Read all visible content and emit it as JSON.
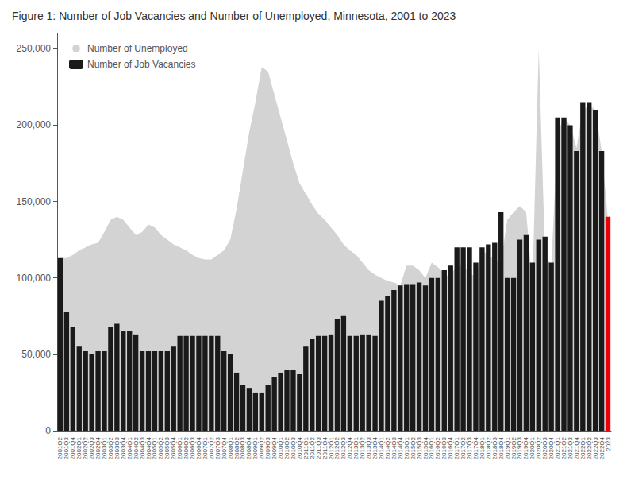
{
  "chart_data": {
    "type": "bar",
    "title": "Figure 1: Number of Job Vacancies and Number of Unemployed, Minnesota, 2001 to 2023",
    "categories": [
      "2001Q2",
      "2001Q3",
      "2001Q4",
      "2002Q1",
      "2002Q2",
      "2002Q3",
      "2002Q4",
      "2003Q1",
      "2003Q2",
      "2003Q3",
      "2003Q4",
      "2004Q1",
      "2004Q2",
      "2004Q3",
      "2004Q4",
      "2005Q1",
      "2005Q2",
      "2005Q3",
      "2005Q4",
      "2006Q1",
      "2006Q2",
      "2006Q3",
      "2006Q4",
      "2007Q1",
      "2007Q2",
      "2007Q3",
      "2007Q4",
      "2008Q1",
      "2008Q2",
      "2008Q3",
      "2008Q4",
      "2009Q1",
      "2009Q2",
      "2009Q3",
      "2009Q4",
      "2010Q1",
      "2010Q2",
      "2010Q3",
      "2010Q4",
      "2011Q1",
      "2011Q2",
      "2011Q3",
      "2011Q4",
      "2012Q1",
      "2012Q2",
      "2012Q3",
      "2012Q4",
      "2013Q1",
      "2013Q2",
      "2013Q3",
      "2013Q4",
      "2014Q1",
      "2014Q2",
      "2014Q3",
      "2014Q4",
      "2015Q1",
      "2015Q2",
      "2015Q3",
      "2015Q4",
      "2016Q1",
      "2016Q2",
      "2016Q3",
      "2016Q4",
      "2017Q1",
      "2017Q2",
      "2017Q3",
      "2017Q4",
      "2018Q1",
      "2018Q2",
      "2018Q3",
      "2018Q4",
      "2019Q1",
      "2019Q2",
      "2019Q3",
      "2019Q4",
      "2020Q1",
      "2020Q2",
      "2020Q3",
      "2020Q4",
      "2021Q1",
      "2021Q2",
      "2021Q3",
      "2021Q4",
      "2022Q1",
      "2022Q2",
      "2022Q3",
      "2022Q4",
      "2023"
    ],
    "series": [
      {
        "name": "Number of Unemployed",
        "type": "area",
        "color": "#d3d3d3",
        "values": [
          113000,
          113000,
          115000,
          118000,
          120000,
          122000,
          123000,
          130000,
          138000,
          140000,
          138000,
          133000,
          128000,
          130000,
          135000,
          133000,
          128000,
          125000,
          122000,
          120000,
          118000,
          115000,
          113000,
          112000,
          112000,
          115000,
          118000,
          125000,
          145000,
          170000,
          195000,
          215000,
          238000,
          235000,
          220000,
          205000,
          190000,
          175000,
          162000,
          155000,
          148000,
          142000,
          138000,
          133000,
          128000,
          122000,
          118000,
          115000,
          110000,
          105000,
          102000,
          100000,
          98000,
          97000,
          95000,
          108000,
          108000,
          105000,
          100000,
          110000,
          107000,
          103000,
          100000,
          110000,
          107000,
          104000,
          100000,
          118000,
          115000,
          112000,
          110000,
          138000,
          143000,
          147000,
          143000,
          95000,
          250000,
          115000,
          108000,
          195000,
          205000,
          200000,
          185000,
          210000,
          213000,
          210000,
          183000,
          138000
        ]
      },
      {
        "name": "Number of Job Vacancies",
        "type": "bar",
        "color": "#1a1a1a",
        "colors": [
          "#1a1a1a",
          "#1a1a1a",
          "#1a1a1a",
          "#1a1a1a",
          "#1a1a1a",
          "#1a1a1a",
          "#1a1a1a",
          "#1a1a1a",
          "#1a1a1a",
          "#1a1a1a",
          "#1a1a1a",
          "#1a1a1a",
          "#1a1a1a",
          "#1a1a1a",
          "#1a1a1a",
          "#1a1a1a",
          "#1a1a1a",
          "#1a1a1a",
          "#1a1a1a",
          "#1a1a1a",
          "#1a1a1a",
          "#1a1a1a",
          "#1a1a1a",
          "#1a1a1a",
          "#1a1a1a",
          "#1a1a1a",
          "#1a1a1a",
          "#1a1a1a",
          "#1a1a1a",
          "#1a1a1a",
          "#1a1a1a",
          "#1a1a1a",
          "#1a1a1a",
          "#1a1a1a",
          "#1a1a1a",
          "#1a1a1a",
          "#1a1a1a",
          "#1a1a1a",
          "#1a1a1a",
          "#1a1a1a",
          "#1a1a1a",
          "#1a1a1a",
          "#1a1a1a",
          "#1a1a1a",
          "#1a1a1a",
          "#1a1a1a",
          "#1a1a1a",
          "#1a1a1a",
          "#1a1a1a",
          "#1a1a1a",
          "#1a1a1a",
          "#1a1a1a",
          "#1a1a1a",
          "#1a1a1a",
          "#1a1a1a",
          "#1a1a1a",
          "#1a1a1a",
          "#1a1a1a",
          "#1a1a1a",
          "#1a1a1a",
          "#1a1a1a",
          "#1a1a1a",
          "#1a1a1a",
          "#1a1a1a",
          "#1a1a1a",
          "#1a1a1a",
          "#1a1a1a",
          "#1a1a1a",
          "#1a1a1a",
          "#1a1a1a",
          "#1a1a1a",
          "#1a1a1a",
          "#1a1a1a",
          "#1a1a1a",
          "#1a1a1a",
          "#1a1a1a",
          "#1a1a1a",
          "#1a1a1a",
          "#1a1a1a",
          "#1a1a1a",
          "#1a1a1a",
          "#1a1a1a",
          "#1a1a1a",
          "#1a1a1a",
          "#1a1a1a",
          "#1a1a1a",
          "#1a1a1a",
          "#e8000a"
        ],
        "values": [
          113000,
          78000,
          68000,
          55000,
          52000,
          50000,
          52000,
          52000,
          68000,
          70000,
          65000,
          65000,
          63000,
          52000,
          52000,
          52000,
          52000,
          52000,
          55000,
          62000,
          62000,
          62000,
          62000,
          62000,
          62000,
          62000,
          52000,
          50000,
          38000,
          30000,
          28000,
          25000,
          25000,
          30000,
          35000,
          38000,
          40000,
          40000,
          37000,
          55000,
          60000,
          62000,
          62000,
          63000,
          73000,
          75000,
          62000,
          62000,
          63000,
          63000,
          62000,
          85000,
          88000,
          92000,
          95000,
          96000,
          96000,
          97000,
          95000,
          100000,
          100000,
          105000,
          108000,
          120000,
          120000,
          120000,
          110000,
          120000,
          122000,
          123000,
          143000,
          100000,
          100000,
          125000,
          128000,
          110000,
          125000,
          127000,
          110000,
          205000,
          205000,
          200000,
          183000,
          215000,
          215000,
          210000,
          183000,
          140000
        ]
      }
    ],
    "ylim": [
      0,
      260000
    ],
    "yticks": [
      0,
      {
        "value": 50000,
        "label": "50,000"
      },
      {
        "value": 100000,
        "label": "100,000"
      },
      {
        "value": 150000,
        "label": "150,000"
      },
      {
        "value": 200000,
        "label": "200,000"
      },
      {
        "value": 250000,
        "label": "250,000"
      }
    ],
    "grid": false,
    "legend": "upper left"
  }
}
